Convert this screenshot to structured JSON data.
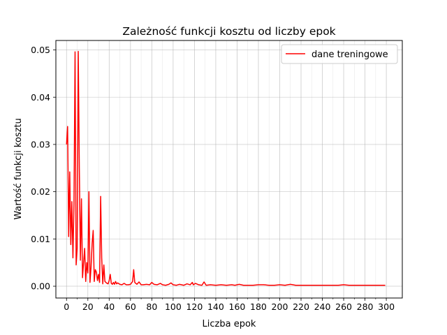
{
  "chart_data": {
    "type": "line",
    "title": "Zależność funkcji kosztu od liczby epok",
    "xlabel": "Liczba epok",
    "ylabel": "Wartość funkcji kosztu",
    "xlim": [
      -10,
      315
    ],
    "ylim": [
      -0.0025,
      0.052
    ],
    "x_ticks_major": [
      0,
      20,
      40,
      60,
      80,
      100,
      120,
      140,
      160,
      180,
      200,
      220,
      240,
      260,
      280,
      300
    ],
    "x_tick_labels": [
      "0",
      "20",
      "40",
      "60",
      "80",
      "100",
      "120",
      "140",
      "160",
      "180",
      "200",
      "220",
      "240",
      "260",
      "280",
      "300"
    ],
    "x_minor_step": 10,
    "y_ticks": [
      0.0,
      0.01,
      0.02,
      0.03,
      0.04,
      0.05
    ],
    "y_tick_labels": [
      "0.00",
      "0.01",
      "0.02",
      "0.03",
      "0.04",
      "0.05"
    ],
    "grid": true,
    "legend_position": "top-right",
    "series": [
      {
        "name": "dane treningowe",
        "color": "#ff0000",
        "points": [
          [
            0,
            0.03
          ],
          [
            1,
            0.0338
          ],
          [
            2,
            0.0105
          ],
          [
            3,
            0.0242
          ],
          [
            4,
            0.0088
          ],
          [
            5,
            0.0179
          ],
          [
            6,
            0.006
          ],
          [
            7,
            0.0175
          ],
          [
            8,
            0.0496
          ],
          [
            9,
            0.0045
          ],
          [
            10,
            0.008
          ],
          [
            11,
            0.0497
          ],
          [
            12,
            0.025
          ],
          [
            13,
            0.0055
          ],
          [
            14,
            0.0185
          ],
          [
            15,
            0.0018
          ],
          [
            16,
            0.005
          ],
          [
            17,
            0.008
          ],
          [
            18,
            0.001
          ],
          [
            19,
            0.005
          ],
          [
            20,
            0.0028
          ],
          [
            21,
            0.02
          ],
          [
            22,
            0.0008
          ],
          [
            23,
            0.004
          ],
          [
            24,
            0.009
          ],
          [
            25,
            0.0118
          ],
          [
            26,
            0.001
          ],
          [
            27,
            0.0035
          ],
          [
            28,
            0.003
          ],
          [
            29,
            0.0012
          ],
          [
            30,
            0.0025
          ],
          [
            31,
            0.0008
          ],
          [
            32,
            0.019
          ],
          [
            33,
            0.006
          ],
          [
            34,
            0.0005
          ],
          [
            35,
            0.0045
          ],
          [
            36,
            0.001
          ],
          [
            37,
            0.0008
          ],
          [
            38,
            0.0006
          ],
          [
            39,
            0.0005
          ],
          [
            40,
            0.0012
          ],
          [
            41,
            0.0025
          ],
          [
            42,
            0.0006
          ],
          [
            43,
            0.0004
          ],
          [
            44,
            0.0008
          ],
          [
            45,
            0.0004
          ],
          [
            46,
            0.001
          ],
          [
            47,
            0.0005
          ],
          [
            48,
            0.0007
          ],
          [
            50,
            0.0004
          ],
          [
            52,
            0.0003
          ],
          [
            54,
            0.0006
          ],
          [
            56,
            0.0003
          ],
          [
            58,
            0.0003
          ],
          [
            60,
            0.0004
          ],
          [
            62,
            0.001
          ],
          [
            63,
            0.0035
          ],
          [
            64,
            0.0008
          ],
          [
            66,
            0.0004
          ],
          [
            68,
            0.0009
          ],
          [
            70,
            0.0003
          ],
          [
            72,
            0.0003
          ],
          [
            75,
            0.0004
          ],
          [
            78,
            0.0003
          ],
          [
            80,
            0.0008
          ],
          [
            82,
            0.0004
          ],
          [
            85,
            0.0003
          ],
          [
            88,
            0.0006
          ],
          [
            90,
            0.0003
          ],
          [
            93,
            0.0002
          ],
          [
            96,
            0.0004
          ],
          [
            98,
            0.0007
          ],
          [
            100,
            0.0003
          ],
          [
            103,
            0.0002
          ],
          [
            106,
            0.0004
          ],
          [
            110,
            0.0002
          ],
          [
            113,
            0.0005
          ],
          [
            116,
            0.0003
          ],
          [
            118,
            0.0008
          ],
          [
            119,
            0.0003
          ],
          [
            121,
            0.0006
          ],
          [
            124,
            0.0003
          ],
          [
            127,
            0.0002
          ],
          [
            129,
            0.0009
          ],
          [
            131,
            0.0002
          ],
          [
            135,
            0.0003
          ],
          [
            140,
            0.0002
          ],
          [
            145,
            0.0003
          ],
          [
            150,
            0.0002
          ],
          [
            155,
            0.0003
          ],
          [
            158,
            0.0002
          ],
          [
            162,
            0.0004
          ],
          [
            166,
            0.0002
          ],
          [
            170,
            0.0002
          ],
          [
            175,
            0.0002
          ],
          [
            180,
            0.0003
          ],
          [
            185,
            0.0003
          ],
          [
            190,
            0.0002
          ],
          [
            195,
            0.0002
          ],
          [
            200,
            0.0003
          ],
          [
            205,
            0.0002
          ],
          [
            210,
            0.0004
          ],
          [
            215,
            0.0002
          ],
          [
            220,
            0.0002
          ],
          [
            225,
            0.0002
          ],
          [
            230,
            0.0002
          ],
          [
            235,
            0.0002
          ],
          [
            240,
            0.0002
          ],
          [
            245,
            0.0002
          ],
          [
            250,
            0.0002
          ],
          [
            255,
            0.0002
          ],
          [
            260,
            0.0003
          ],
          [
            265,
            0.0002
          ],
          [
            270,
            0.0002
          ],
          [
            275,
            0.0002
          ],
          [
            280,
            0.0002
          ],
          [
            285,
            0.0002
          ],
          [
            290,
            0.0002
          ],
          [
            295,
            0.0002
          ],
          [
            299,
            0.0002
          ]
        ]
      }
    ]
  }
}
